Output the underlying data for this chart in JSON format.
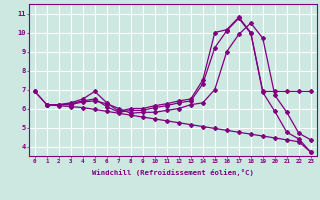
{
  "xlabel": "Windchill (Refroidissement éolien,°C)",
  "background_color": "#cce8e0",
  "line_color": "#800080",
  "grid_color": "#ffffff",
  "xlim": [
    -0.5,
    23.5
  ],
  "ylim": [
    3.5,
    11.5
  ],
  "xticks": [
    0,
    1,
    2,
    3,
    4,
    5,
    6,
    7,
    8,
    9,
    10,
    11,
    12,
    13,
    14,
    15,
    16,
    17,
    18,
    19,
    20,
    21,
    22,
    23
  ],
  "yticks": [
    4,
    5,
    6,
    7,
    8,
    9,
    10,
    11
  ],
  "line1_x": [
    0,
    1,
    2,
    3,
    4,
    5,
    6,
    7,
    8,
    9,
    10,
    11,
    12,
    13,
    14,
    15,
    16,
    17,
    18,
    19,
    20,
    21,
    22,
    23
  ],
  "line1_y": [
    6.9,
    6.2,
    6.2,
    6.3,
    6.5,
    6.9,
    6.3,
    5.85,
    6.0,
    6.0,
    6.15,
    6.25,
    6.4,
    6.5,
    7.5,
    10.0,
    10.15,
    10.8,
    10.0,
    6.9,
    6.9,
    6.9,
    6.9,
    6.9
  ],
  "line2_x": [
    0,
    1,
    2,
    3,
    4,
    5,
    6,
    7,
    8,
    9,
    10,
    11,
    12,
    13,
    14,
    15,
    16,
    17,
    18,
    19,
    20,
    21,
    22,
    23
  ],
  "line2_y": [
    6.9,
    6.2,
    6.2,
    6.25,
    6.4,
    6.5,
    6.1,
    5.8,
    5.9,
    5.9,
    6.05,
    6.15,
    6.3,
    6.4,
    7.3,
    9.2,
    10.1,
    10.75,
    9.95,
    6.85,
    5.85,
    4.75,
    4.4,
    3.7
  ],
  "line3_x": [
    1,
    2,
    3,
    4,
    5,
    6,
    7,
    8,
    9,
    10,
    11,
    12,
    13,
    14,
    15,
    16,
    17,
    18,
    19,
    20,
    21,
    22,
    23
  ],
  "line3_y": [
    6.2,
    6.2,
    6.2,
    6.35,
    6.4,
    6.25,
    6.0,
    5.75,
    5.8,
    5.8,
    5.9,
    6.0,
    6.2,
    6.3,
    7.0,
    9.0,
    9.9,
    10.5,
    9.7,
    6.7,
    5.8,
    4.7,
    4.35
  ],
  "line4_x": [
    1,
    2,
    3,
    4,
    5,
    6,
    7,
    8,
    9,
    10,
    11,
    12,
    13,
    14,
    15,
    16,
    17,
    18,
    19,
    20,
    21,
    22,
    23
  ],
  "line4_y": [
    6.2,
    6.15,
    6.1,
    6.05,
    5.95,
    5.85,
    5.75,
    5.65,
    5.55,
    5.45,
    5.35,
    5.25,
    5.15,
    5.05,
    4.95,
    4.85,
    4.75,
    4.65,
    4.55,
    4.45,
    4.35,
    4.25,
    3.7
  ]
}
